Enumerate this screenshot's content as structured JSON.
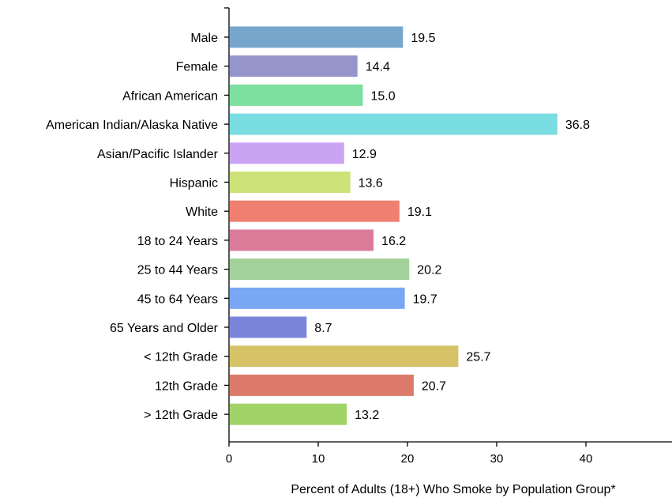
{
  "chart_data": {
    "type": "bar",
    "orientation": "horizontal",
    "xlabel": "Percent of Adults (18+) Who Smoke by Population Group*",
    "ylabel": "",
    "xlim": [
      0,
      48
    ],
    "xticks": [
      "0",
      "10",
      "20",
      "30",
      "40"
    ],
    "grid": false,
    "categories": [
      "Male",
      "Female",
      "African American",
      "American Indian/Alaska Native",
      "Asian/Pacific Islander",
      "Hispanic",
      "White",
      "18 to 24 Years",
      "25 to 44 Years",
      "45 to 64 Years",
      "65 Years and Older",
      "< 12th Grade",
      "12th Grade",
      "> 12th Grade"
    ],
    "values": [
      19.5,
      14.4,
      15.0,
      36.8,
      12.9,
      13.6,
      19.1,
      16.2,
      20.2,
      19.7,
      8.7,
      25.7,
      20.7,
      13.2
    ],
    "value_labels": [
      "19.5",
      "14.4",
      "15.0",
      "36.8",
      "12.9",
      "13.6",
      "19.1",
      "16.2",
      "20.2",
      "19.7",
      "8.7",
      "25.7",
      "20.7",
      "13.2"
    ],
    "colors": [
      "#76a6cc",
      "#9595cb",
      "#7ddf9f",
      "#79dde2",
      "#cba3f5",
      "#cce279",
      "#ef7f6e",
      "#d97b99",
      "#a2d19a",
      "#7aa7f4",
      "#7b86db",
      "#d6c267",
      "#db7a6a",
      "#a1d267"
    ]
  }
}
